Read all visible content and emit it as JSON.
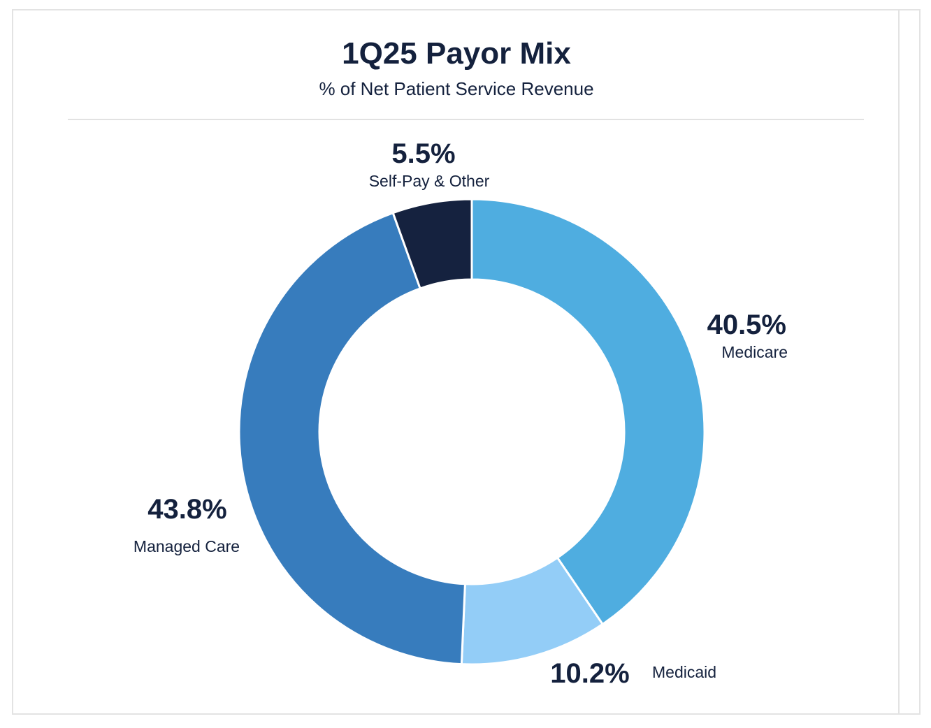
{
  "chart_data": {
    "type": "pie",
    "variant": "donut",
    "title": "1Q25 Payor Mix",
    "subtitle": "% of Net Patient Service Revenue",
    "slices": [
      {
        "name": "Medicare",
        "value": 40.5,
        "label": "40.5%",
        "color": "#4fade0"
      },
      {
        "name": "Medicaid",
        "value": 10.2,
        "label": "10.2%",
        "color": "#93cdf7"
      },
      {
        "name": "Managed Care",
        "value": 43.8,
        "label": "43.8%",
        "color": "#377cbd"
      },
      {
        "name": "Self-Pay & Other",
        "value": 5.5,
        "label": "5.5%",
        "color": "#15223f"
      }
    ],
    "legend": "none"
  }
}
